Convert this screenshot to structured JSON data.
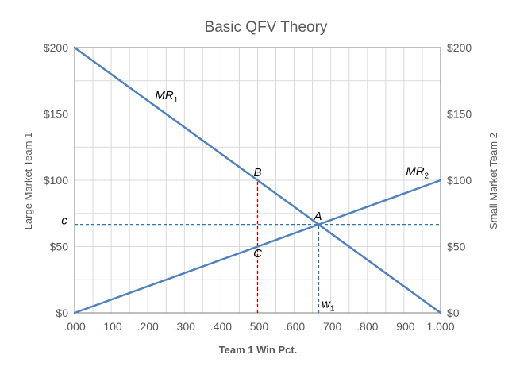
{
  "chart_data": {
    "type": "line",
    "title": "Basic QFV Theory",
    "xlabel": "Team 1 Win Pct.",
    "ylabel_left": "Large Market Team 1",
    "ylabel_right": "Small Market Team 2",
    "xlim": [
      0,
      1
    ],
    "ylim": [
      0,
      200
    ],
    "x_ticks": [
      0,
      0.1,
      0.2,
      0.3,
      0.4,
      0.5,
      0.6,
      0.7,
      0.8,
      0.9,
      1.0
    ],
    "x_tick_labels": [
      ".000",
      ".100",
      ".200",
      ".300",
      ".400",
      ".500",
      ".600",
      ".700",
      ".800",
      ".900",
      "1.000"
    ],
    "y_ticks": [
      0,
      50,
      100,
      150,
      200
    ],
    "y_tick_labels": [
      "$0",
      "$50",
      "$100",
      "$150",
      "$200"
    ],
    "grid": true,
    "series": [
      {
        "name": "MR1",
        "color": "#4f81bd",
        "x": [
          0,
          1
        ],
        "y": [
          200,
          0
        ]
      },
      {
        "name": "MR2",
        "color": "#4f81bd",
        "x": [
          0,
          1
        ],
        "y": [
          0,
          100
        ]
      }
    ],
    "reference_lines": [
      {
        "label": "c",
        "orientation": "horizontal",
        "y": 66.7,
        "color": "#2e75b6",
        "style": "dashed"
      },
      {
        "label": "w1",
        "orientation": "vertical",
        "x": 0.667,
        "y_to": 66.7,
        "color": "#2e75b6",
        "style": "dashed"
      },
      {
        "orientation": "vertical",
        "x": 0.5,
        "y_to": 100,
        "color": "#c00000",
        "style": "dashed"
      }
    ],
    "annotations": [
      {
        "id": "mr1",
        "text": "MR",
        "sub": "1",
        "x": 0.22,
        "y": 161
      },
      {
        "id": "mr2",
        "text": "MR",
        "sub": "2",
        "x": 0.905,
        "y": 104
      },
      {
        "id": "b",
        "text": "B",
        "x": 0.5,
        "y": 103
      },
      {
        "id": "a",
        "text": "A",
        "x": 0.665,
        "y": 70
      },
      {
        "id": "c-point",
        "text": "C",
        "x": 0.5,
        "y": 42
      },
      {
        "id": "w1",
        "text": "w",
        "sub": "1",
        "x": 0.675,
        "y": 4
      },
      {
        "id": "c-axis",
        "text": "c",
        "x": -0.02,
        "y": 66.7
      }
    ]
  }
}
